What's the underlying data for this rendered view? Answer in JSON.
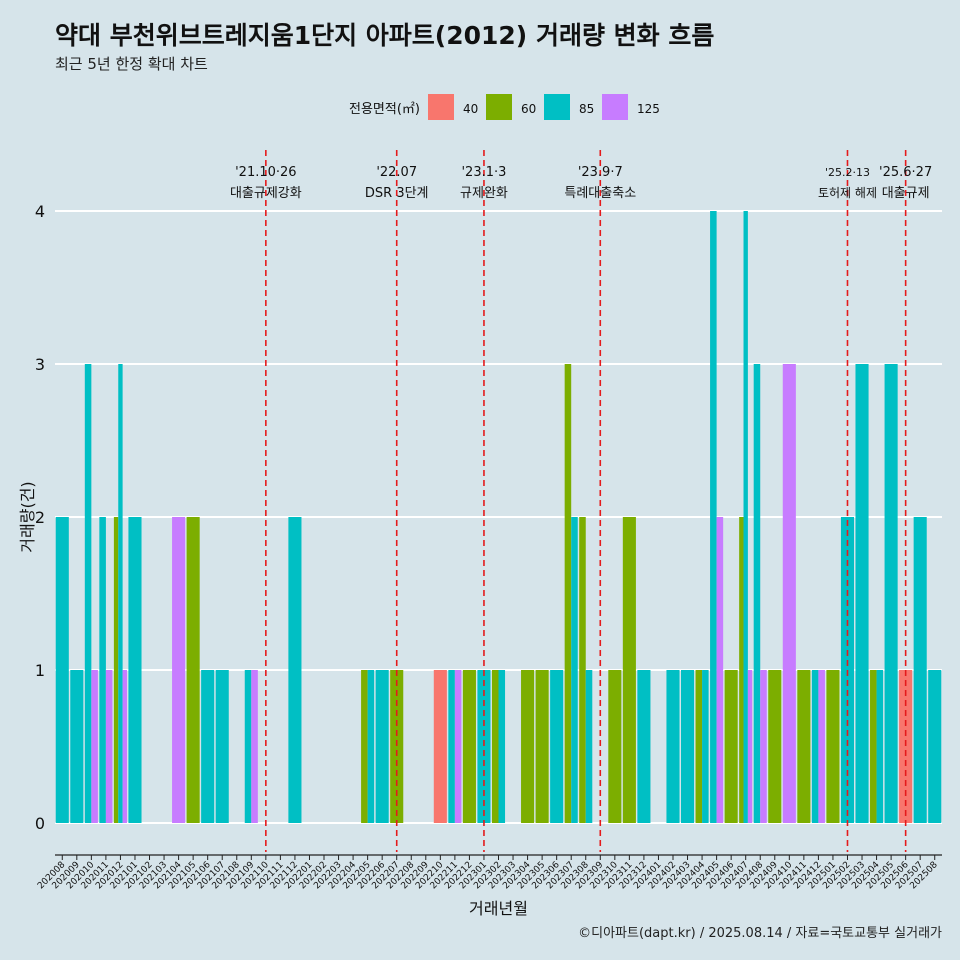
{
  "title": "약대 부천위브트레지움1단지 아파트(2012) 거래량 변화 흐름",
  "subtitle": "최근 5년 한정 확대 차트",
  "caption": "©디아파트(dapt.kr) / 2025.08.14 / 자료=국토교통부 실거래가",
  "colors": {
    "40": "#f8766d",
    "60": "#7cae00",
    "85": "#00bfc4",
    "125": "#c77cff",
    "event_line": "#e41a1c",
    "grid": "#ffffff",
    "background": "#d6e4ea"
  },
  "chart_data": {
    "type": "bar",
    "xlabel": "거래년월",
    "ylabel": "거래량(건)",
    "ylim": [
      0,
      4
    ],
    "yticks": [
      0,
      1,
      2,
      3,
      4
    ],
    "legend": {
      "title": "전용면적(㎡)",
      "entries": [
        "40",
        "60",
        "85",
        "125"
      ],
      "placement": "top"
    },
    "categories": [
      "202008",
      "202009",
      "202010",
      "202011",
      "202012",
      "202101",
      "202102",
      "202103",
      "202104",
      "202105",
      "202106",
      "202107",
      "202108",
      "202109",
      "202110",
      "202111",
      "202112",
      "202201",
      "202202",
      "202203",
      "202204",
      "202205",
      "202206",
      "202207",
      "202208",
      "202209",
      "202210",
      "202211",
      "202212",
      "202301",
      "202302",
      "202303",
      "202304",
      "202305",
      "202306",
      "202307",
      "202308",
      "202309",
      "202310",
      "202311",
      "202312",
      "202401",
      "202402",
      "202403",
      "202404",
      "202405",
      "202406",
      "202407",
      "202408",
      "202409",
      "202410",
      "202411",
      "202412",
      "202501",
      "202502",
      "202503",
      "202504",
      "202505",
      "202506",
      "202507",
      "202508"
    ],
    "series": [
      {
        "name": "40",
        "values": [
          0,
          0,
          0,
          0,
          0,
          0,
          0,
          0,
          0,
          0,
          0,
          0,
          0,
          0,
          0,
          0,
          0,
          0,
          0,
          0,
          0,
          0,
          0,
          0,
          0,
          0,
          1,
          0,
          0,
          0,
          0,
          0,
          0,
          0,
          0,
          0,
          0,
          0,
          0,
          0,
          0,
          0,
          0,
          0,
          0,
          0,
          0,
          0,
          0,
          0,
          0,
          0,
          0,
          0,
          0,
          0,
          0,
          0,
          1,
          0,
          0
        ]
      },
      {
        "name": "60",
        "values": [
          0,
          0,
          0,
          0,
          2,
          0,
          0,
          0,
          0,
          2,
          0,
          0,
          0,
          0,
          0,
          0,
          0,
          0,
          0,
          0,
          0,
          1,
          0,
          1,
          0,
          0,
          0,
          0,
          1,
          0,
          1,
          0,
          1,
          1,
          0,
          3,
          2,
          0,
          1,
          2,
          0,
          0,
          0,
          0,
          1,
          0,
          1,
          2,
          0,
          1,
          0,
          1,
          0,
          1,
          0,
          0,
          1,
          0,
          0,
          0,
          0
        ]
      },
      {
        "name": "85",
        "values": [
          2,
          1,
          3,
          2,
          3,
          2,
          0,
          0,
          0,
          0,
          1,
          1,
          0,
          1,
          0,
          0,
          2,
          0,
          0,
          0,
          0,
          1,
          1,
          0,
          0,
          0,
          0,
          1,
          0,
          1,
          1,
          0,
          0,
          0,
          1,
          2,
          1,
          0,
          0,
          0,
          1,
          0,
          1,
          1,
          1,
          4,
          0,
          4,
          3,
          0,
          0,
          0,
          1,
          0,
          2,
          3,
          1,
          3,
          0,
          2,
          1
        ]
      },
      {
        "name": "125",
        "values": [
          0,
          0,
          1,
          1,
          1,
          0,
          0,
          0,
          2,
          0,
          0,
          0,
          0,
          1,
          0,
          0,
          0,
          0,
          0,
          0,
          0,
          0,
          0,
          0,
          0,
          0,
          0,
          1,
          0,
          0,
          0,
          0,
          0,
          0,
          0,
          0,
          0,
          0,
          0,
          0,
          0,
          0,
          0,
          0,
          0,
          2,
          0,
          1,
          1,
          0,
          3,
          0,
          1,
          0,
          0,
          0,
          0,
          0,
          0,
          0,
          0
        ]
      }
    ],
    "events": [
      {
        "index": 14.5,
        "date": "'21.10·26",
        "label": "대출규제강화"
      },
      {
        "index": 23.5,
        "date": "'22.07",
        "label": "DSR 3단계"
      },
      {
        "index": 29.5,
        "date": "'23.1·3",
        "label": "규제완화"
      },
      {
        "index": 37.5,
        "date": "'23.9·7",
        "label": "특례대출축소"
      },
      {
        "index": 54.5,
        "date": "'25.2·13",
        "label": "토허제 해제"
      },
      {
        "index": 58.5,
        "date": "'25.6·27",
        "label": "대출규제"
      }
    ]
  }
}
